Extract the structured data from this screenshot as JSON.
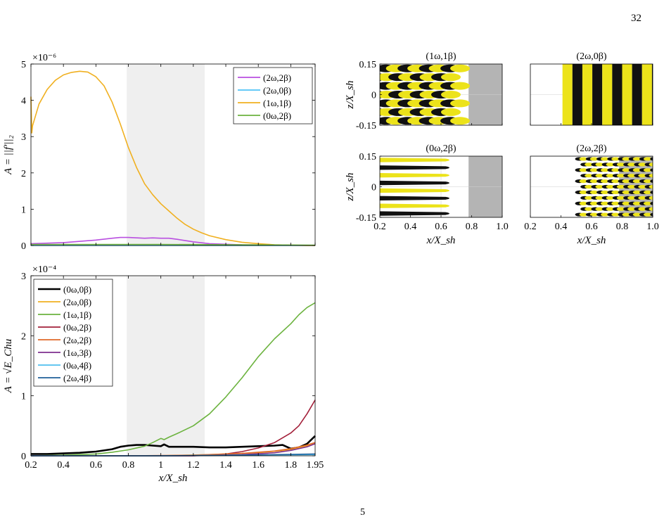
{
  "page_number": "32",
  "bottom_fragment": "5",
  "colors": {
    "purple": "#b94fe0",
    "lightblue": "#4fc3f7",
    "orange": "#f0b020",
    "green": "#6cb33f",
    "black": "#000000",
    "darkred": "#a3203a",
    "redorange": "#e06a2a",
    "violet": "#7e2f8e",
    "skyblue": "#4fbfee",
    "navy": "#1f5f99",
    "shade": "#efefef",
    "mask": "#b4b4b4",
    "yellow": "#ece31a"
  },
  "chart_data": [
    {
      "type": "line",
      "ylabel": "A = ||f′||₂",
      "exponent": "×10⁻⁶",
      "xlim": [
        0.2,
        1.95
      ],
      "ylim": [
        0,
        5
      ],
      "xticks": [
        0.2,
        0.4,
        0.6,
        0.8,
        1.0,
        1.2,
        1.4,
        1.6,
        1.8,
        1.95
      ],
      "yticks": [
        "0",
        "1",
        "2",
        "3",
        "4",
        "5"
      ],
      "shaded_region": [
        0.79,
        1.27
      ],
      "legend_position": "top-right",
      "series": [
        {
          "name": "(2ω,2β)",
          "color": "purple",
          "x": [
            0.2,
            0.4,
            0.6,
            0.7,
            0.75,
            0.8,
            0.9,
            0.95,
            1.0,
            1.05,
            1.1,
            1.2,
            1.3,
            1.5,
            1.7,
            1.9,
            1.95
          ],
          "y": [
            0.05,
            0.08,
            0.15,
            0.2,
            0.22,
            0.22,
            0.2,
            0.21,
            0.2,
            0.2,
            0.17,
            0.1,
            0.05,
            0.02,
            0.01,
            0.0,
            0.0
          ]
        },
        {
          "name": "(2ω,0β)",
          "color": "lightblue",
          "x": [
            0.2,
            0.6,
            1.0,
            1.5,
            1.95
          ],
          "y": [
            0.0,
            0.0,
            0.0,
            0.0,
            0.0
          ]
        },
        {
          "name": "(1ω,1β)",
          "color": "orange",
          "x": [
            0.2,
            0.205,
            0.21,
            0.25,
            0.3,
            0.35,
            0.4,
            0.45,
            0.5,
            0.55,
            0.6,
            0.65,
            0.7,
            0.75,
            0.8,
            0.85,
            0.9,
            0.95,
            1.0,
            1.05,
            1.1,
            1.15,
            1.2,
            1.25,
            1.3,
            1.4,
            1.5,
            1.6,
            1.7,
            1.8,
            1.9,
            1.95
          ],
          "y": [
            4.1,
            3.1,
            3.3,
            3.9,
            4.3,
            4.55,
            4.7,
            4.77,
            4.8,
            4.78,
            4.65,
            4.4,
            3.95,
            3.35,
            2.7,
            2.15,
            1.7,
            1.4,
            1.15,
            0.95,
            0.75,
            0.58,
            0.45,
            0.35,
            0.27,
            0.16,
            0.09,
            0.05,
            0.02,
            0.01,
            0.0,
            0.0
          ]
        },
        {
          "name": "(0ω,2β)",
          "color": "green",
          "x": [
            0.2,
            0.6,
            1.0,
            1.5,
            1.95
          ],
          "y": [
            0.03,
            0.03,
            0.03,
            0.02,
            0.01
          ]
        }
      ]
    },
    {
      "type": "line",
      "ylabel": "A = √E_Chu",
      "exponent": "×10⁻⁴",
      "xlabel": "x/X_sh",
      "xlim": [
        0.2,
        1.95
      ],
      "ylim": [
        0,
        3
      ],
      "xticks": [
        0.2,
        0.4,
        0.6,
        0.8,
        1.0,
        1.2,
        1.4,
        1.6,
        1.8,
        1.95
      ],
      "xtick_labels": [
        "0.2",
        "0.4",
        "0.6",
        "0.8",
        "1",
        "1.2",
        "1.4",
        "1.6",
        "1.8",
        "1.95"
      ],
      "yticks": [
        "0",
        "1",
        "2",
        "3"
      ],
      "shaded_region": [
        0.79,
        1.27
      ],
      "legend_position": "top-left",
      "series": [
        {
          "name": "(0ω,0β)",
          "color": "black",
          "width": 2.6,
          "x": [
            0.2,
            0.3,
            0.4,
            0.5,
            0.6,
            0.7,
            0.75,
            0.8,
            0.85,
            0.9,
            0.95,
            1.0,
            1.02,
            1.05,
            1.1,
            1.2,
            1.3,
            1.4,
            1.5,
            1.6,
            1.7,
            1.75,
            1.8,
            1.85,
            1.9,
            1.95
          ],
          "y": [
            0.03,
            0.03,
            0.04,
            0.05,
            0.07,
            0.11,
            0.15,
            0.17,
            0.18,
            0.18,
            0.17,
            0.16,
            0.19,
            0.15,
            0.15,
            0.15,
            0.14,
            0.14,
            0.15,
            0.16,
            0.17,
            0.18,
            0.12,
            0.14,
            0.2,
            0.33
          ]
        },
        {
          "name": "(2ω,0β)",
          "color": "orange",
          "x": [
            0.2,
            0.6,
            1.0,
            1.3,
            1.6,
            1.8,
            1.95
          ],
          "y": [
            0.0,
            0.0,
            0.0,
            0.02,
            0.05,
            0.1,
            0.2
          ]
        },
        {
          "name": "(1ω,1β)",
          "color": "green",
          "x": [
            0.2,
            0.4,
            0.6,
            0.7,
            0.8,
            0.9,
            0.95,
            1.0,
            1.02,
            1.05,
            1.1,
            1.2,
            1.3,
            1.4,
            1.5,
            1.6,
            1.7,
            1.8,
            1.85,
            1.9,
            1.95
          ],
          "y": [
            0.0,
            0.01,
            0.03,
            0.06,
            0.1,
            0.16,
            0.22,
            0.29,
            0.27,
            0.31,
            0.37,
            0.5,
            0.7,
            0.98,
            1.3,
            1.65,
            1.95,
            2.2,
            2.35,
            2.47,
            2.55
          ]
        },
        {
          "name": "(0ω,2β)",
          "color": "darkred",
          "x": [
            0.2,
            0.8,
            1.2,
            1.4,
            1.5,
            1.6,
            1.7,
            1.8,
            1.85,
            1.9,
            1.95
          ],
          "y": [
            0.0,
            0.0,
            0.0,
            0.03,
            0.07,
            0.13,
            0.22,
            0.38,
            0.5,
            0.7,
            0.93
          ]
        },
        {
          "name": "(2ω,2β)",
          "color": "redorange",
          "x": [
            0.2,
            0.8,
            1.2,
            1.5,
            1.7,
            1.8,
            1.9,
            1.95
          ],
          "y": [
            0.0,
            0.0,
            0.01,
            0.04,
            0.08,
            0.12,
            0.18,
            0.22
          ]
        },
        {
          "name": "(1ω,3β)",
          "color": "violet",
          "x": [
            0.2,
            0.8,
            1.2,
            1.5,
            1.7,
            1.8,
            1.9,
            1.95
          ],
          "y": [
            0.0,
            0.0,
            0.0,
            0.02,
            0.05,
            0.09,
            0.15,
            0.2
          ]
        },
        {
          "name": "(0ω,4β)",
          "color": "skyblue",
          "x": [
            0.2,
            1.0,
            1.5,
            1.95
          ],
          "y": [
            0.0,
            0.0,
            0.01,
            0.02
          ]
        },
        {
          "name": "(2ω,4β)",
          "color": "navy",
          "x": [
            0.2,
            1.0,
            1.5,
            1.95
          ],
          "y": [
            0.0,
            0.0,
            0.01,
            0.03
          ]
        }
      ]
    },
    {
      "type": "heatmap",
      "title": "(1ω,1β)",
      "ylabel": "z/X_sh",
      "xlim": [
        0.2,
        1.0
      ],
      "ylim": [
        -0.15,
        0.15
      ],
      "yticks": [
        "0.15",
        "0",
        "-0.15"
      ],
      "pattern": "staggered",
      "structure_x_range": [
        0.2,
        0.68
      ],
      "mask_x_range": [
        0.78,
        1.0
      ]
    },
    {
      "type": "heatmap",
      "title": "(2ω,0β)",
      "xlim": [
        0.2,
        1.0
      ],
      "ylim": [
        -0.15,
        0.15
      ],
      "pattern": "stripes",
      "structure_x_range": [
        0.41,
        1.0
      ]
    },
    {
      "type": "heatmap",
      "title": "(0ω,2β)",
      "ylabel": "z/X_sh",
      "xlabel": "x/X_sh",
      "xlim": [
        0.2,
        1.0
      ],
      "ylim": [
        -0.15,
        0.15
      ],
      "yticks": [
        "0.15",
        "0",
        "-0.15"
      ],
      "xticks": [
        "0.2",
        "0.4",
        "0.6",
        "0.8",
        "1.0"
      ],
      "pattern": "streaks",
      "structure_x_range": [
        0.2,
        0.68
      ],
      "mask_x_range": [
        0.78,
        1.0
      ]
    },
    {
      "type": "heatmap",
      "title": "(2ω,2β)",
      "xlabel": "x/X_sh",
      "xlim": [
        0.2,
        1.0
      ],
      "ylim": [
        -0.15,
        0.15
      ],
      "xticks": [
        "0.2",
        "0.4",
        "0.6",
        "0.8",
        "1.0"
      ],
      "pattern": "dense",
      "structure_x_range": [
        0.52,
        1.0
      ],
      "mask_x_range": [
        0.78,
        1.0
      ]
    }
  ]
}
